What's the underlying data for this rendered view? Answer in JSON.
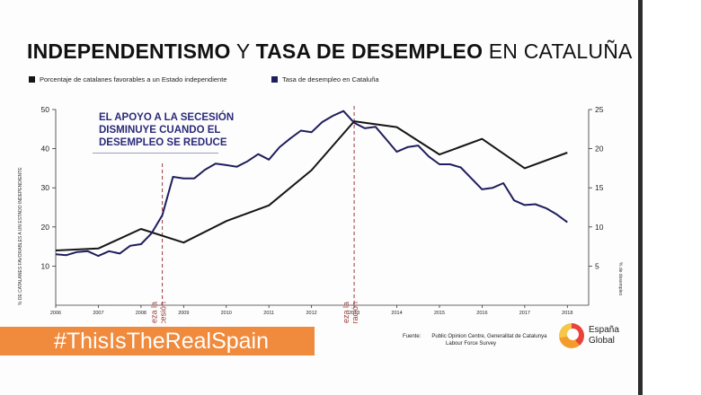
{
  "header": {
    "title_part1": "INDEPENDENTISMO",
    "title_part2": "Y",
    "title_part3": "TASA DE DESEMPLEO",
    "title_part4": "EN CATALUÑA"
  },
  "banner": {
    "text": "#ThisIsTheRealSpain"
  },
  "source": {
    "label": "Fuente:",
    "line1": "Public Opinion Centre, Generalitat de Catalunya",
    "line2": "Labour Force Survey"
  },
  "logo": {
    "line1": "España",
    "line2": "Global",
    "icon": "espana-global-logo-icon"
  },
  "colors": {
    "independence": "#151515",
    "unemployment": "#1e1e5e",
    "marker": "#9a3a3a",
    "banner": "#f08a3c"
  },
  "chart_data": {
    "type": "line",
    "x_ticks": [
      "2006",
      "2007",
      "2008",
      "2009",
      "2010",
      "2011",
      "2012",
      "2013",
      "2014",
      "2015",
      "2016",
      "2017",
      "2018"
    ],
    "xlim": [
      2006,
      2018.5
    ],
    "ylabel_left": "% DE CATALANES FAVORABLES A UN ESTADO INDEPENDIENTE",
    "ylabel_right": "% de desempleo",
    "ylim_left": [
      0,
      50
    ],
    "ylim_right": [
      0,
      25
    ],
    "yticks_left": [
      10,
      20,
      30,
      40,
      50
    ],
    "yticks_right": [
      5,
      10,
      15,
      20,
      25
    ],
    "series": [
      {
        "name": "Porcentaje de catalanes favorables a un Estado independiente",
        "axis": "left",
        "x": [
          2006.0,
          2007.0,
          2008.0,
          2009.0,
          2010.0,
          2011.0,
          2012.0,
          2013.0,
          2014.0,
          2015.0,
          2016.0,
          2017.0,
          2018.0
        ],
        "y": [
          14,
          14.5,
          19.5,
          16.0,
          21.5,
          25.5,
          34.5,
          47.0,
          45.5,
          38.5,
          42.5,
          35.0,
          39.0
        ]
      },
      {
        "name": "Tasa de desempleo en Cataluña",
        "axis": "right",
        "x": [
          2006.0,
          2006.25,
          2006.5,
          2006.75,
          2007.0,
          2007.25,
          2007.5,
          2007.75,
          2008.0,
          2008.25,
          2008.5,
          2008.75,
          2009.0,
          2009.25,
          2009.5,
          2009.75,
          2010.0,
          2010.25,
          2010.5,
          2010.75,
          2011.0,
          2011.25,
          2011.5,
          2011.75,
          2012.0,
          2012.25,
          2012.5,
          2012.75,
          2013.0,
          2013.25,
          2013.5,
          2013.75,
          2014.0,
          2014.25,
          2014.5,
          2014.75,
          2015.0,
          2015.25,
          2015.5,
          2015.75,
          2016.0,
          2016.25,
          2016.5,
          2016.75,
          2017.0,
          2017.25,
          2017.5,
          2017.75,
          2018.0
        ],
        "y": [
          6.5,
          6.4,
          6.8,
          6.9,
          6.3,
          6.9,
          6.6,
          7.6,
          7.8,
          9.2,
          11.5,
          16.4,
          16.2,
          16.2,
          17.3,
          18.1,
          17.9,
          17.7,
          18.4,
          19.3,
          18.6,
          20.2,
          21.3,
          22.3,
          22.1,
          23.4,
          24.2,
          24.8,
          23.3,
          22.6,
          22.8,
          21.2,
          19.6,
          20.2,
          20.4,
          19.0,
          18.0,
          18.0,
          17.6,
          16.2,
          14.8,
          15.0,
          15.6,
          13.4,
          12.8,
          12.9,
          12.4,
          11.6,
          10.6
        ]
      }
    ],
    "annotations": [
      {
        "x": 2008.5,
        "text": "Empieza la recesión"
      },
      {
        "x": 2013.0,
        "text": "Empieza la recuperación"
      }
    ],
    "callout": {
      "line1": "EL APOYO A LA SECESIÓN",
      "line2": "DISMINUYE CUANDO EL",
      "line3": "DESEMPLEO SE REDUCE"
    }
  }
}
